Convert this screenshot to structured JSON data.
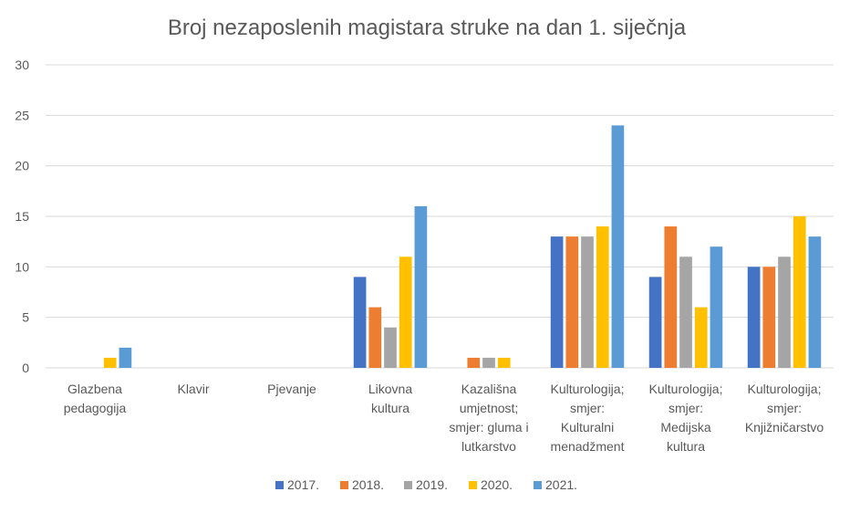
{
  "chart_data": {
    "type": "bar",
    "title": "Broj nezaposlenih magistara struke na dan 1. siječnja",
    "xlabel": "",
    "ylabel": "",
    "ylim": [
      0,
      30
    ],
    "yticks": [
      0,
      5,
      10,
      15,
      20,
      25,
      30
    ],
    "grid": true,
    "legend_position": "bottom",
    "categories": [
      [
        "Glazbena",
        "pedagogija"
      ],
      [
        "Klavir"
      ],
      [
        "Pjevanje"
      ],
      [
        "Likovna",
        "kultura"
      ],
      [
        "Kazališna",
        "umjetnost;",
        "smjer: gluma i",
        "lutkarstvo"
      ],
      [
        "Kulturologija;",
        "smjer:",
        "Kulturalni",
        "menadžment"
      ],
      [
        "Kulturologija;",
        "smjer:",
        "Medijska",
        "kultura"
      ],
      [
        "Kulturologija;",
        "smjer:",
        "Knjižničarstvo"
      ]
    ],
    "series": [
      {
        "name": "2017.",
        "color": "#4472C4",
        "values": [
          0,
          0,
          0,
          9,
          0,
          13,
          9,
          10
        ]
      },
      {
        "name": "2018.",
        "color": "#ED7D31",
        "values": [
          0,
          0,
          0,
          6,
          1,
          13,
          14,
          10
        ]
      },
      {
        "name": "2019.",
        "color": "#A5A5A5",
        "values": [
          0,
          0,
          0,
          4,
          1,
          13,
          11,
          11
        ]
      },
      {
        "name": "2020.",
        "color": "#FFC000",
        "values": [
          1,
          0,
          0,
          11,
          1,
          14,
          6,
          15
        ]
      },
      {
        "name": "2021.",
        "color": "#5B9BD5",
        "values": [
          2,
          0,
          0,
          16,
          0,
          24,
          12,
          13
        ]
      }
    ]
  }
}
